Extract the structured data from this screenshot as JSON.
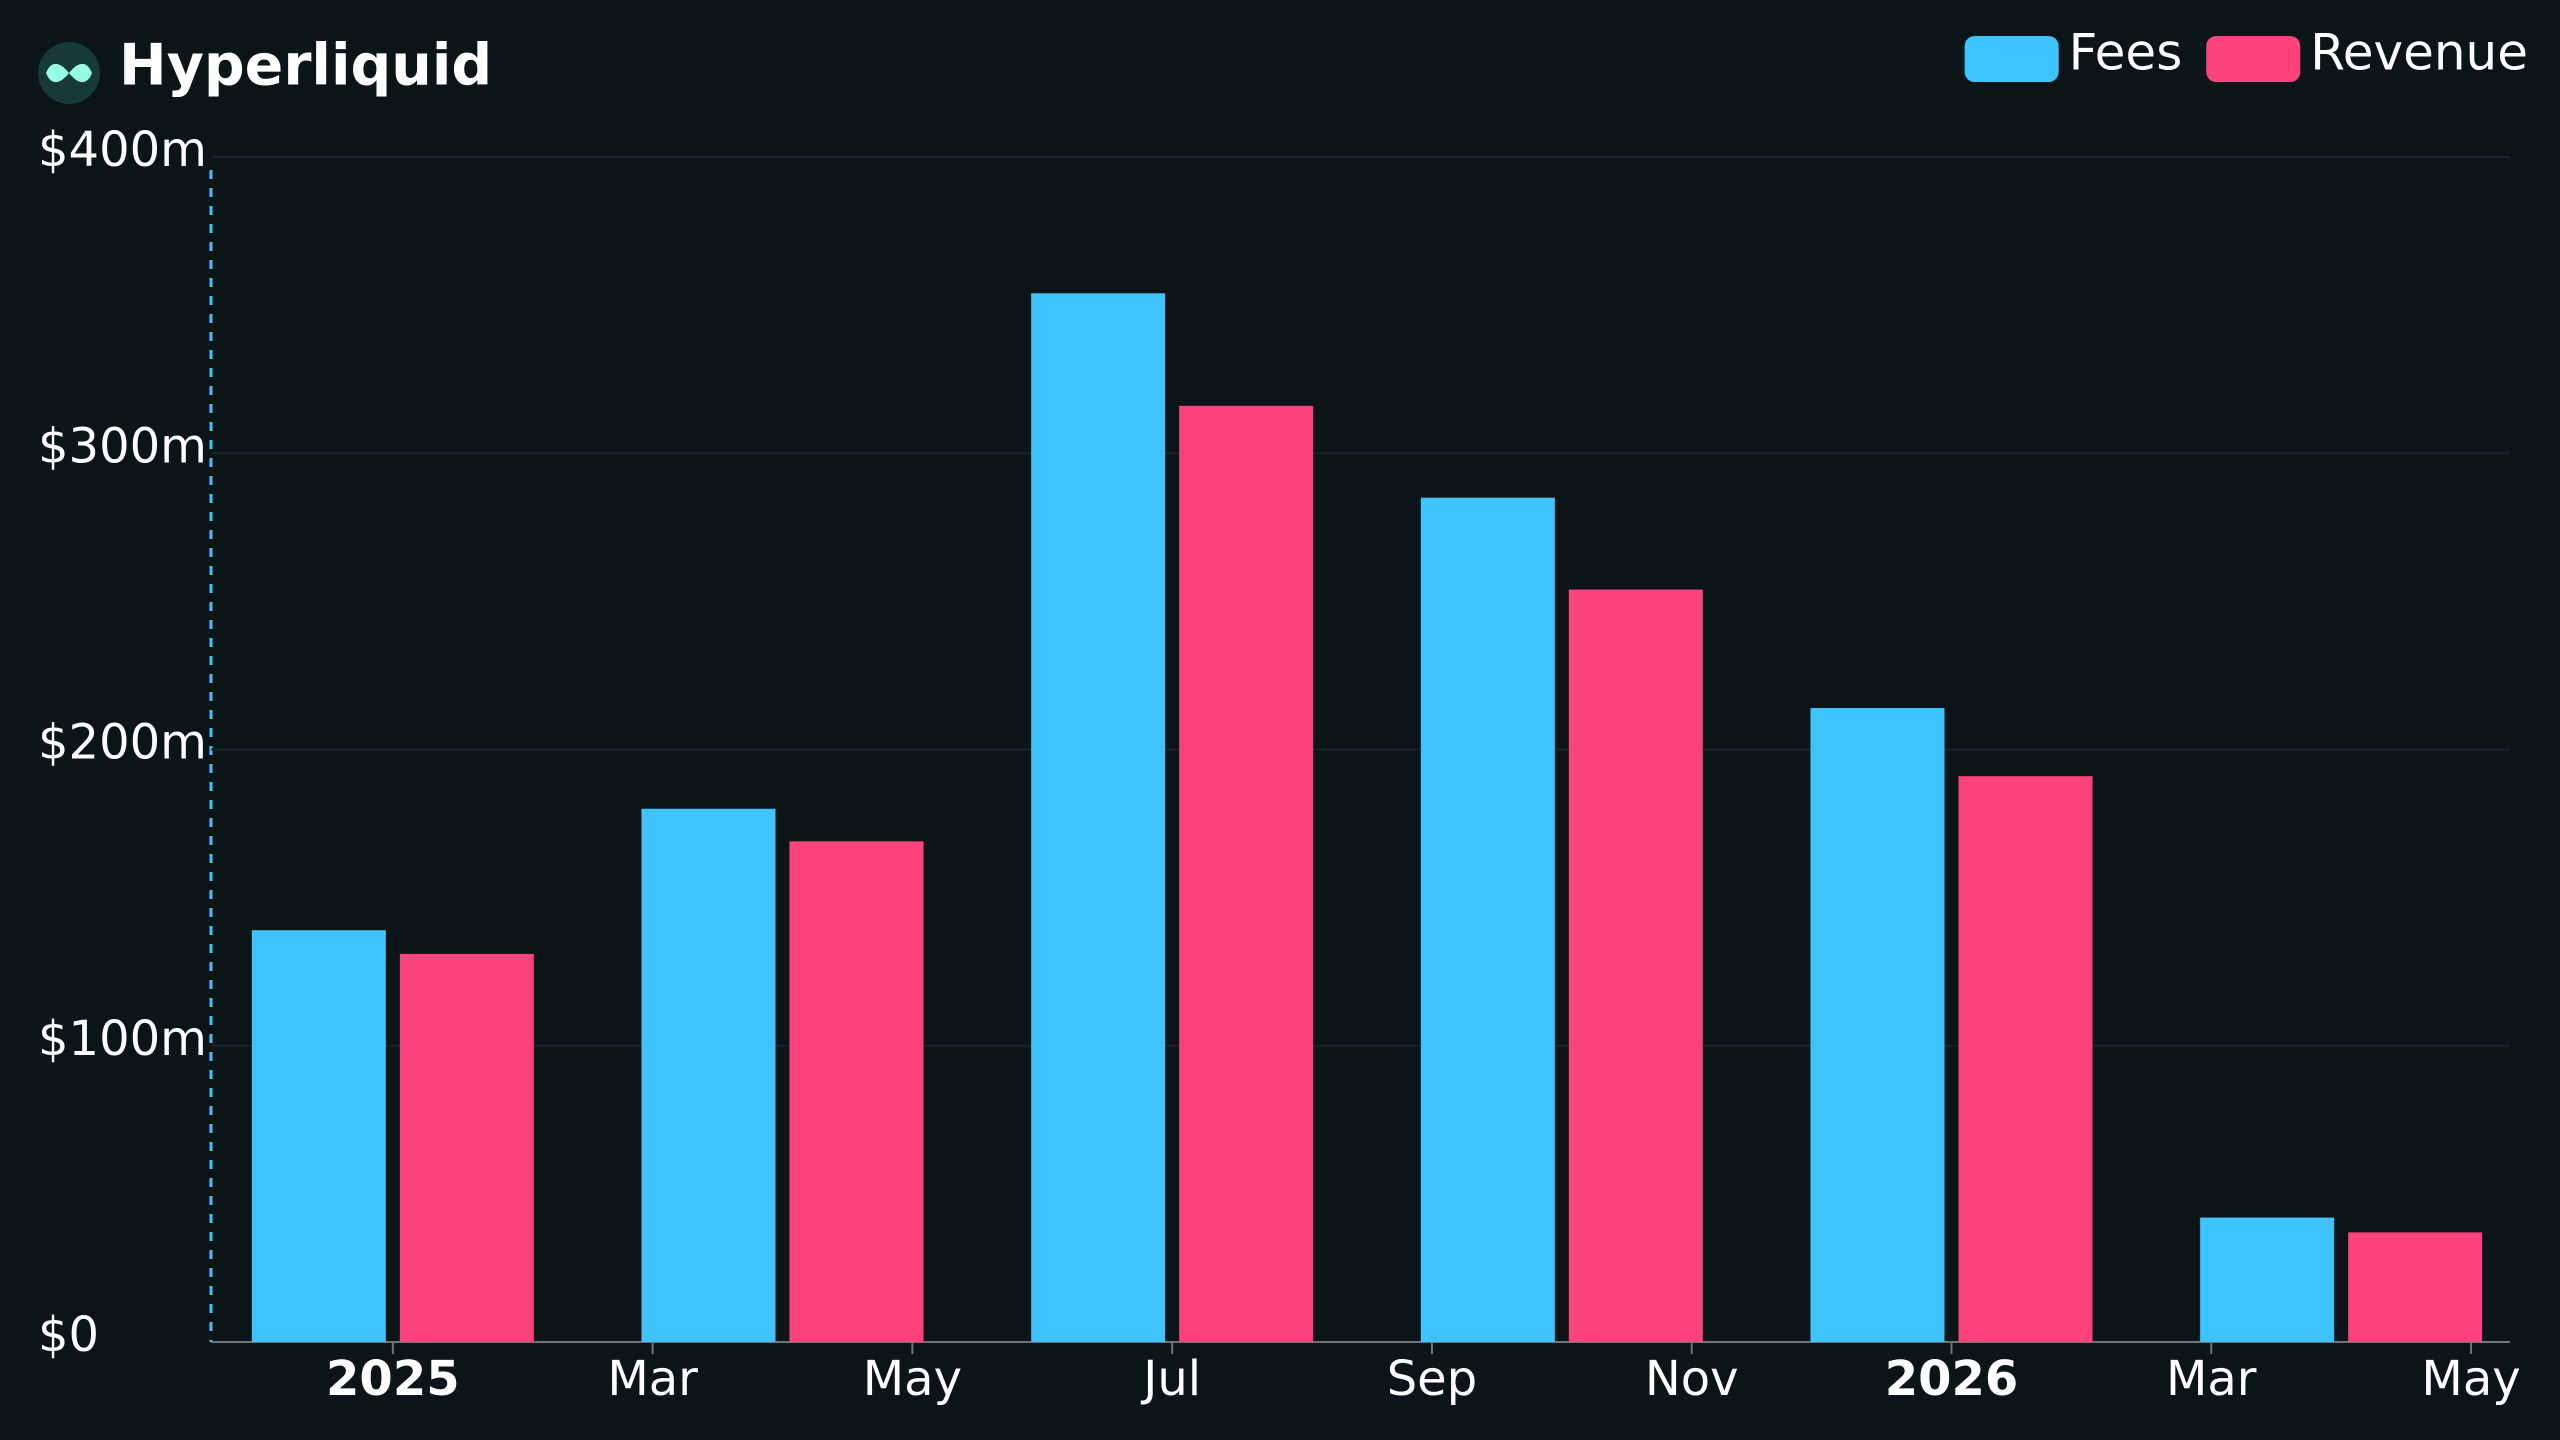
{
  "chart_data": {
    "type": "bar",
    "title": "Hyperliquid",
    "x": [
      0,
      3,
      6,
      9,
      12,
      15
    ],
    "xlim": [
      -1.4,
      16.3
    ],
    "xticks": [
      {
        "value": 0,
        "label": "2025",
        "major": true
      },
      {
        "value": 2,
        "label": "Mar"
      },
      {
        "value": 4,
        "label": "May"
      },
      {
        "value": 6,
        "label": "Jul"
      },
      {
        "value": 8,
        "label": "Sep"
      },
      {
        "value": 10,
        "label": "Nov"
      },
      {
        "value": 12,
        "label": "2026",
        "major": true
      },
      {
        "value": 14,
        "label": "Mar"
      },
      {
        "value": 16,
        "label": "May"
      }
    ],
    "ylim": [
      0,
      400
    ],
    "yticks": [
      {
        "value": 0,
        "label": "$0"
      },
      {
        "value": 100,
        "label": "$100m"
      },
      {
        "value": 200,
        "label": "$200m"
      },
      {
        "value": 300,
        "label": "$300m"
      },
      {
        "value": 400,
        "label": "$400m"
      }
    ],
    "grid": true,
    "legend": "top-right",
    "series": [
      {
        "name": "Fees",
        "color": "#3fc3fd",
        "values": [
          139,
          180,
          354,
          285,
          214,
          42
        ]
      },
      {
        "name": "Revenue",
        "color": "#fd437c",
        "values": [
          131,
          169,
          316,
          254,
          191,
          37
        ]
      }
    ]
  }
}
